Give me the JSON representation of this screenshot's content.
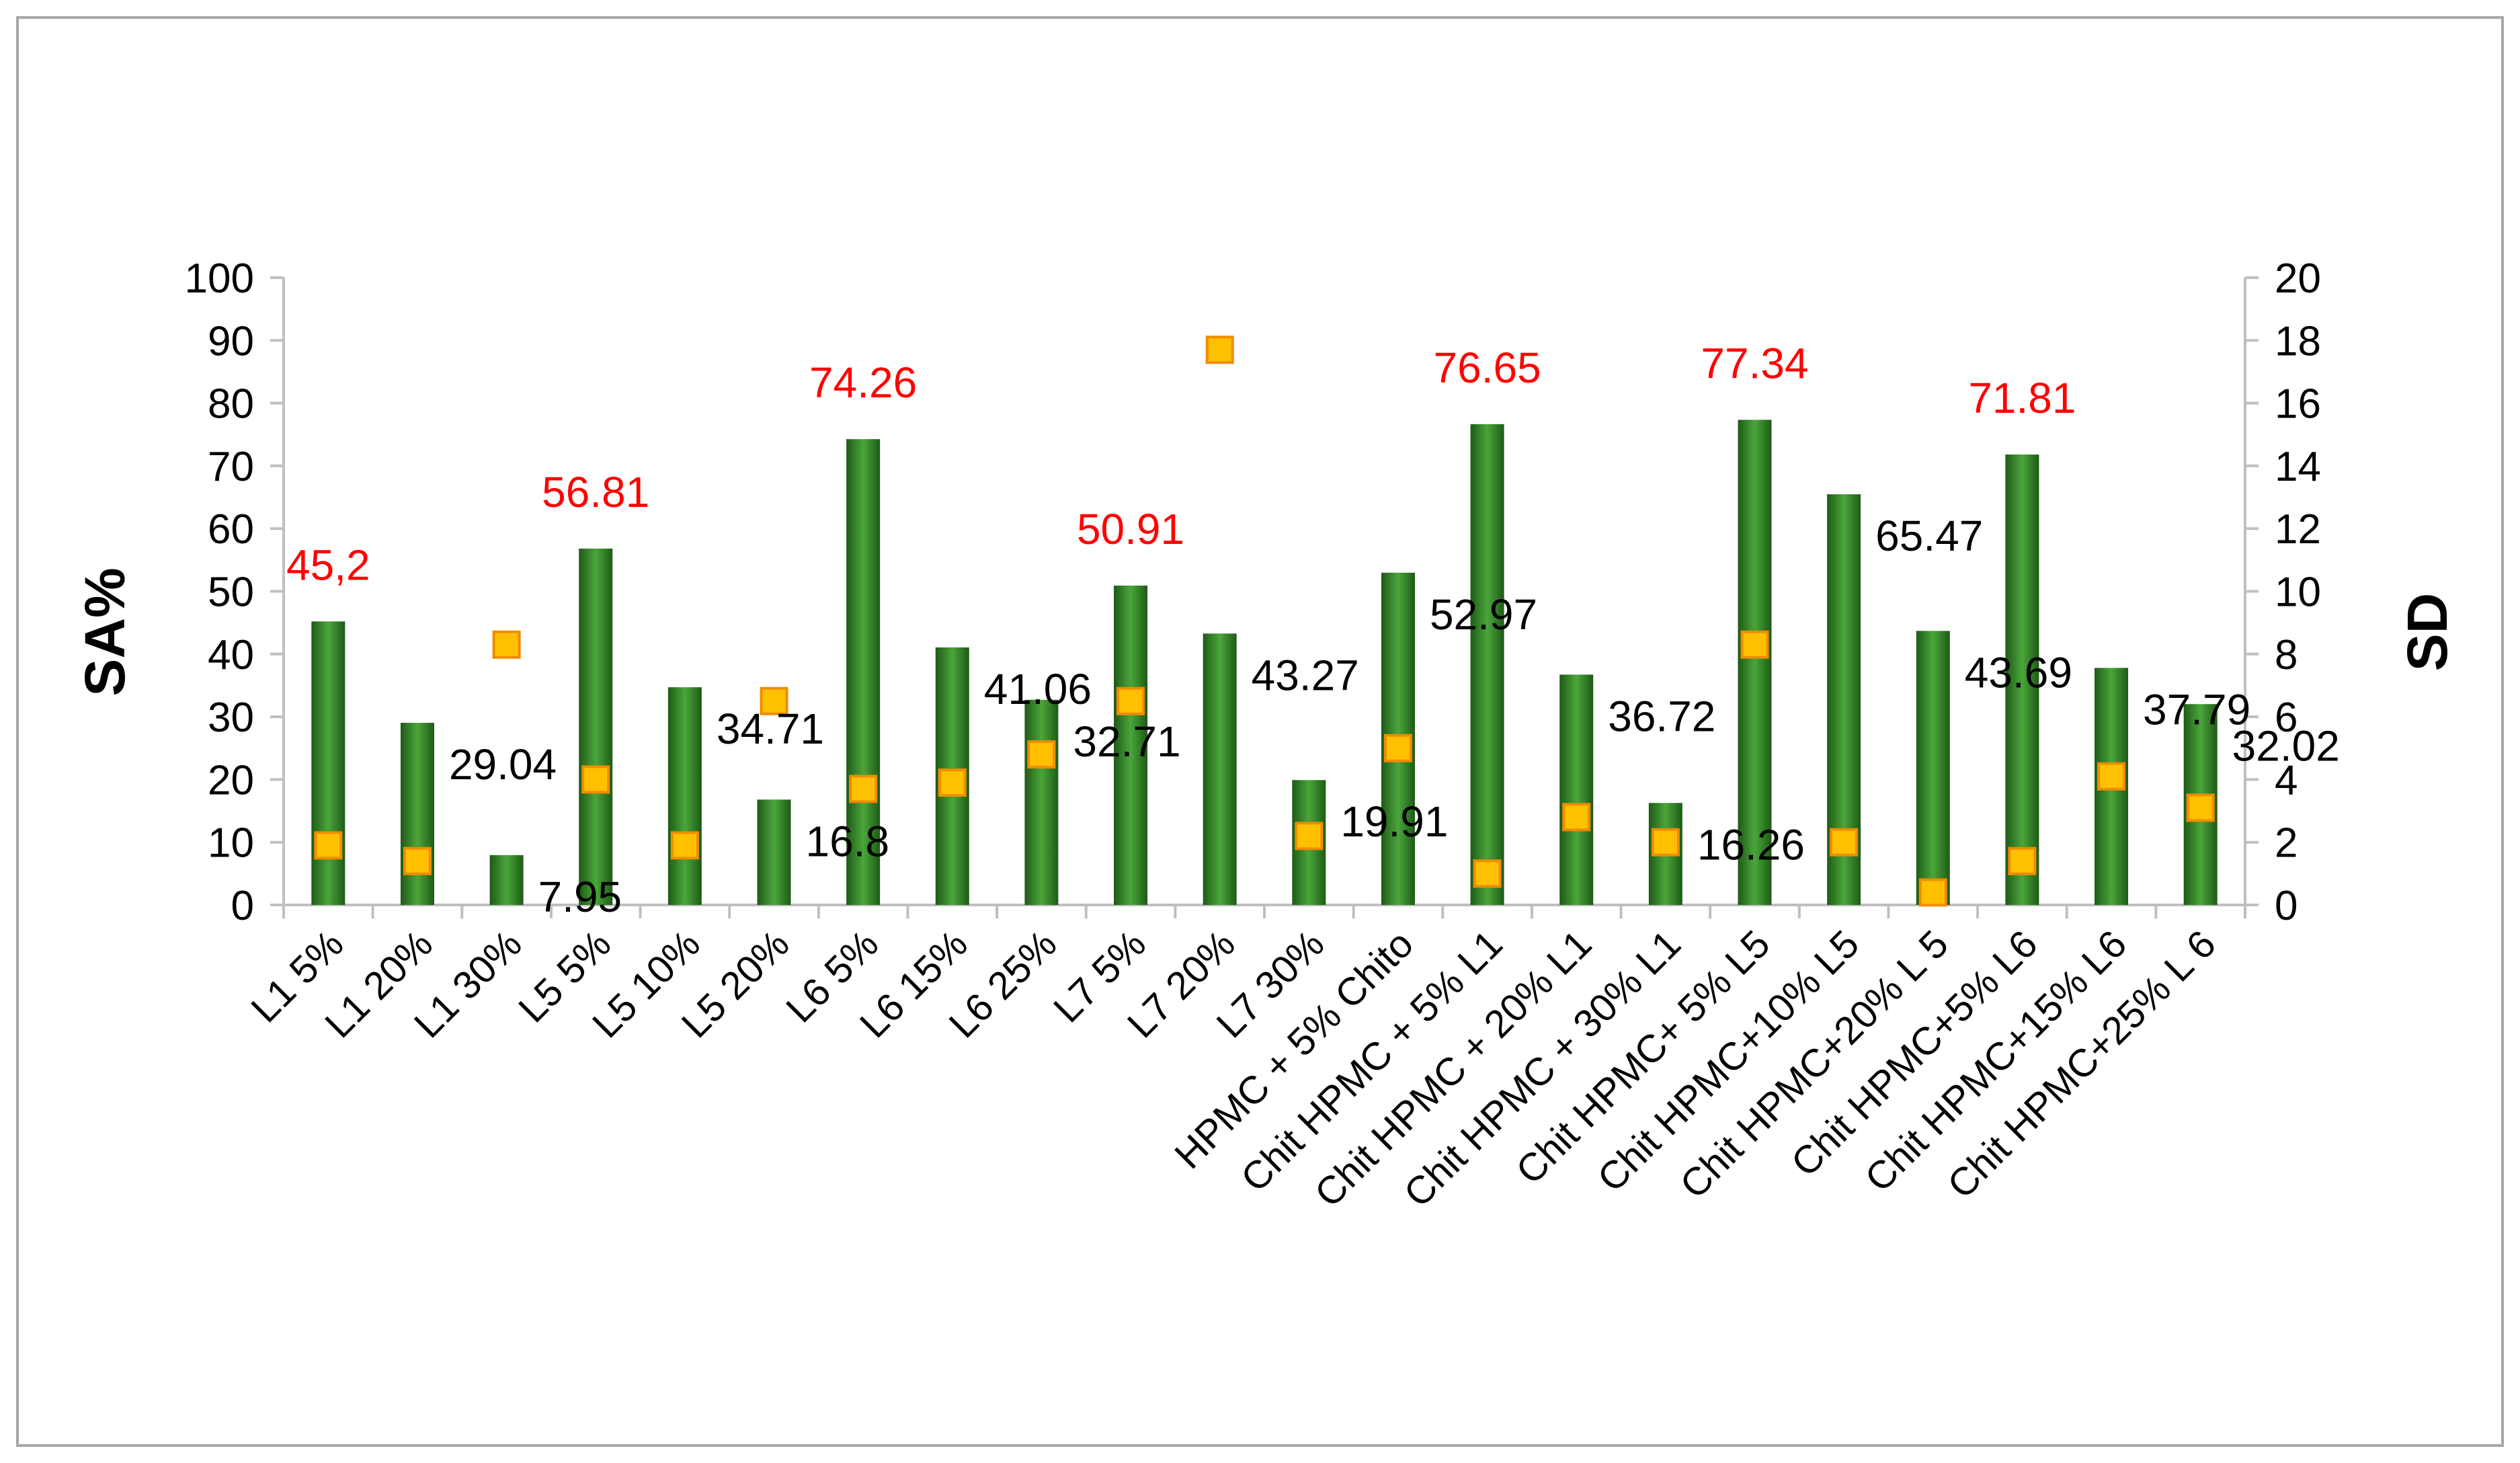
{
  "chart_data": {
    "type": "bar",
    "y_axis_label": "SA%",
    "y2_axis_label": "SD",
    "ylim": [
      0,
      100
    ],
    "y2lim": [
      0,
      20
    ],
    "y_ticks": [
      "0",
      "10",
      "20",
      "30",
      "40",
      "50",
      "60",
      "70",
      "80",
      "90",
      "100"
    ],
    "y2_ticks": [
      "0",
      "2",
      "4",
      "6",
      "8",
      "10",
      "12",
      "14",
      "16",
      "18",
      "20"
    ],
    "categories": [
      "L1 5%",
      "L1 20%",
      "L1 30%",
      "L5 5%",
      "L5 10%",
      "L5 20%",
      "L6 5%",
      "L6 15%",
      "L6 25%",
      "L7 5%",
      "L7 20%",
      "L7 30%",
      "HPMC + 5% Chito",
      "Chit HPMC + 5% L1",
      "Chit HPMC + 20% L1",
      "Chit HPMC + 30% L1",
      "Chit HPMC+ 5% L5",
      "Chit HPMC+10% L5",
      "Chit HPMC+20% L 5",
      "Chit HPMC+5% L6",
      "Chit HPMC+15% L6",
      "Chit HPMC+25% L 6"
    ],
    "series": [
      {
        "axis": "left",
        "style": "bar",
        "values": [
          45.2,
          29.04,
          7.95,
          56.81,
          34.71,
          16.8,
          74.26,
          41.06,
          32.71,
          50.91,
          43.27,
          19.91,
          52.97,
          76.65,
          36.72,
          16.26,
          77.34,
          65.47,
          43.69,
          71.81,
          37.79,
          32.02
        ],
        "data_labels": [
          "45,2",
          "29.04",
          "7.95",
          "56.81",
          "34.71",
          "16.8",
          "74.26",
          "41.06",
          "32.71",
          "50.91",
          "43.27",
          "19.91",
          "52.97",
          "76.65",
          "36.72",
          "16.26",
          "77.34",
          "65.47",
          "43.69",
          "71.81",
          "37.79",
          "32.02"
        ],
        "highlighted": [
          true,
          false,
          false,
          true,
          false,
          false,
          true,
          false,
          false,
          true,
          false,
          false,
          false,
          true,
          false,
          false,
          true,
          false,
          false,
          true,
          false,
          false
        ]
      },
      {
        "axis": "right",
        "style": "marker",
        "values": [
          1.9,
          1.4,
          8.3,
          4.0,
          1.9,
          6.5,
          3.7,
          3.9,
          4.8,
          6.5,
          17.7,
          2.2,
          5.0,
          1.0,
          2.8,
          2.0,
          8.3,
          2.0,
          0.4,
          1.4,
          4.1,
          3.1
        ]
      }
    ],
    "colors": {
      "bar_dark": "#1e5a17",
      "bar_light": "#4aa63a",
      "marker_fill": "#ffc000",
      "marker_stroke": "#f08c00",
      "label_highlight": "#ff0000",
      "label_normal": "#000000",
      "axis": "#bfbfbf"
    },
    "grid": false,
    "legend": "none"
  }
}
